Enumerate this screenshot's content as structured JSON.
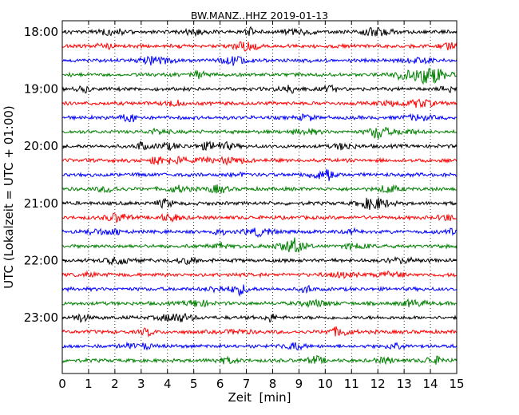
{
  "chart_data": {
    "type": "line",
    "title": "BW.MANZ..HHZ 2019-01-13",
    "xlabel": "Zeit  [min]",
    "ylabel": "UTC (Lokalzeit = UTC + 01:00)",
    "xlim": [
      0,
      15
    ],
    "x_ticks": [
      "0",
      "1",
      "2",
      "3",
      "4",
      "5",
      "6",
      "7",
      "8",
      "9",
      "10",
      "11",
      "12",
      "13",
      "14",
      "15"
    ],
    "y_ticks": [
      "18:00",
      "19:00",
      "20:00",
      "21:00",
      "22:00",
      "23:00"
    ],
    "grid": "vertical dotted",
    "trace_count": 24,
    "trace_interval_min": 15,
    "start_time": "18:00",
    "colors": [
      "#000000",
      "#ff0000",
      "#0000ff",
      "#008000"
    ],
    "traces": [
      {
        "start": "18:00"
      },
      {
        "start": "18:15"
      },
      {
        "start": "18:30"
      },
      {
        "start": "18:45"
      },
      {
        "start": "19:00"
      },
      {
        "start": "19:15"
      },
      {
        "start": "19:30"
      },
      {
        "start": "19:45"
      },
      {
        "start": "20:00"
      },
      {
        "start": "20:15"
      },
      {
        "start": "20:30"
      },
      {
        "start": "20:45"
      },
      {
        "start": "21:00"
      },
      {
        "start": "21:15"
      },
      {
        "start": "21:30"
      },
      {
        "start": "21:45"
      },
      {
        "start": "22:00"
      },
      {
        "start": "22:15"
      },
      {
        "start": "22:30"
      },
      {
        "start": "22:45"
      },
      {
        "start": "23:00"
      },
      {
        "start": "23:15"
      },
      {
        "start": "23:30"
      },
      {
        "start": "23:45"
      }
    ]
  }
}
